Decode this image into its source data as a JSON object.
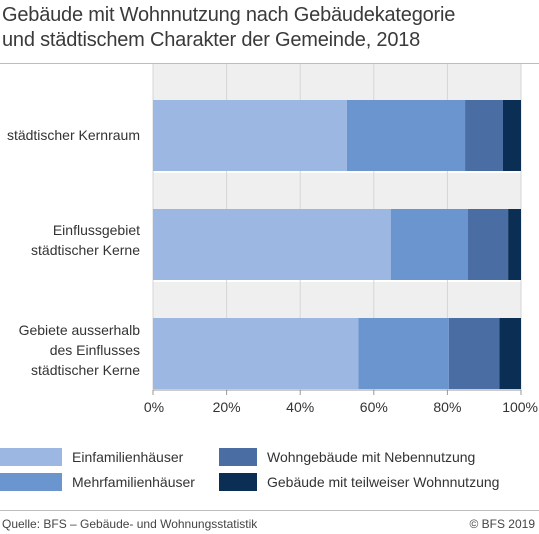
{
  "title_line1": "Gebäude mit Wohnnutzung nach Gebäudekategorie",
  "title_line2": "und städtischem Charakter der Gemeinde, 2018",
  "colors": {
    "Einfamilienhäuser": "#9cb7e1",
    "Mehrfamilienhäuser": "#6a95cf",
    "Wohngebäude mit Nebennutzung": "#4a6ea4",
    "Gebäude mit teilweiser Wohnnutzung": "#0b2e55",
    "band": "#efefef"
  },
  "chart_data": {
    "type": "bar",
    "orientation": "horizontal",
    "stacked": true,
    "normalized": true,
    "categories": [
      [
        "städtischer Kernraum"
      ],
      [
        "Einflussgebiet",
        "städtischer Kerne"
      ],
      [
        "Gebiete ausserhalb",
        "des Einflusses",
        "städtischer Kerne"
      ]
    ],
    "series": [
      {
        "name": "Einfamilienhäuser",
        "values": [
          52.7,
          64.6,
          55.8
        ]
      },
      {
        "name": "Mehrfamilienhäuser",
        "values": [
          32.1,
          21.0,
          24.6
        ]
      },
      {
        "name": "Wohngebäude mit Nebennutzung",
        "values": [
          10.3,
          10.9,
          13.7
        ]
      },
      {
        "name": "Gebäude mit teilweiser Wohnnutzung",
        "values": [
          4.9,
          3.5,
          5.9
        ]
      }
    ],
    "xlim": [
      0,
      100
    ],
    "xticks": [
      "0%",
      "20%",
      "40%",
      "60%",
      "80%",
      "100%"
    ],
    "grid": true,
    "legend_position": "bottom"
  },
  "legend": [
    {
      "label": "Einfamilienhäuser",
      "color": "#9cb7e1"
    },
    {
      "label": "Mehrfamilienhäuser",
      "color": "#6a95cf"
    },
    {
      "label": "Wohngebäude mit Nebennutzung",
      "color": "#4a6ea4"
    },
    {
      "label": "Gebäude mit teilweiser Wohnnutzung",
      "color": "#0b2e55"
    }
  ],
  "source": "Quelle: BFS – Gebäude- und Wohnungsstatistik",
  "copyright": "© BFS 2019"
}
